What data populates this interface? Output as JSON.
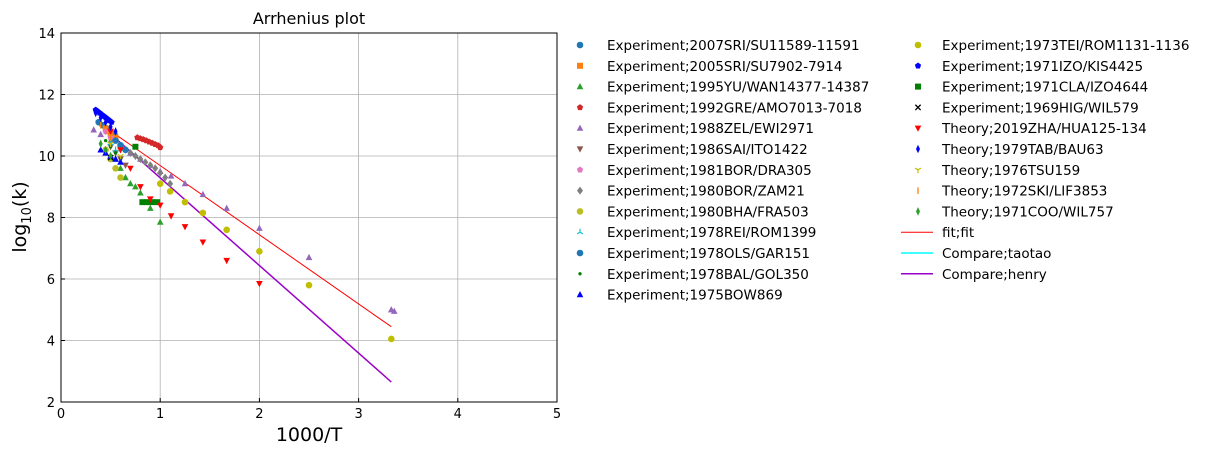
{
  "chart_data": {
    "type": "scatter",
    "title": "Arrhenius plot",
    "xlabel": "1000/T",
    "ylabel_base": "log",
    "ylabel_sub": "10",
    "ylabel_rest": "(k)",
    "xlim": [
      0,
      5
    ],
    "ylim": [
      2,
      14
    ],
    "xticks": [
      0,
      1,
      2,
      3,
      4,
      5
    ],
    "yticks": [
      2,
      4,
      6,
      8,
      10,
      12,
      14
    ],
    "grid": true,
    "legend_placement": "outside-right",
    "series": [
      {
        "name": "Experiment;2007SRI/SU11589-11591",
        "marker": "circle",
        "color": "#1f77b4",
        "x": [
          0.38,
          0.42,
          0.46,
          0.5,
          0.54
        ],
        "y": [
          11.1,
          11.0,
          10.9,
          10.8,
          10.7
        ]
      },
      {
        "name": "Experiment;2005SRI/SU7902-7914",
        "marker": "square",
        "color": "#ff7f0e",
        "x": [
          0.45,
          0.5,
          0.55
        ],
        "y": [
          10.9,
          10.75,
          10.6
        ]
      },
      {
        "name": "Experiment;1995YU/WAN14377-14387",
        "marker": "triangle-up",
        "color": "#2ca02c",
        "x": [
          0.55,
          0.6,
          0.65,
          0.7,
          0.75,
          0.8,
          0.9,
          1.0
        ],
        "y": [
          9.9,
          9.6,
          9.3,
          9.1,
          9.0,
          8.8,
          8.3,
          7.85
        ]
      },
      {
        "name": "Experiment;1992GRE/AMO7013-7018",
        "marker": "pentagon",
        "color": "#d62728",
        "x": [
          0.77,
          0.8,
          0.83,
          0.86,
          0.89,
          0.92,
          0.95,
          0.98,
          1.0
        ],
        "y": [
          10.6,
          10.57,
          10.54,
          10.5,
          10.46,
          10.42,
          10.38,
          10.34,
          10.28
        ]
      },
      {
        "name": "Experiment;1988ZEL/EWI2971",
        "marker": "triangle-up",
        "color": "#9467bd",
        "x": [
          0.33,
          0.4,
          0.5,
          0.6,
          0.7,
          0.8,
          0.9,
          1.0,
          1.11,
          1.25,
          1.43,
          1.67,
          2.0,
          2.5,
          3.33,
          3.36
        ],
        "y": [
          10.85,
          10.7,
          10.5,
          10.3,
          10.1,
          9.9,
          9.7,
          9.5,
          9.35,
          9.1,
          8.75,
          8.3,
          7.65,
          6.7,
          5.0,
          4.95
        ]
      },
      {
        "name": "Experiment;1986SAI/ITO1422",
        "marker": "triangle-down",
        "color": "#8c564b",
        "x": [
          0.5,
          0.55,
          0.6,
          0.65
        ],
        "y": [
          10.3,
          10.1,
          9.9,
          9.7
        ]
      },
      {
        "name": "Experiment;1981BOR/DRA305",
        "marker": "pentagon",
        "color": "#e377c2",
        "x": [
          0.45,
          0.5
        ],
        "y": [
          10.8,
          10.6
        ]
      },
      {
        "name": "Experiment;1980BOR/ZAM21",
        "marker": "diamond",
        "color": "#7f7f7f",
        "x": [
          0.6,
          0.65,
          0.7,
          0.75,
          0.8,
          0.85,
          0.9,
          0.95,
          1.0,
          1.05,
          1.1
        ],
        "y": [
          10.3,
          10.2,
          10.1,
          10.0,
          9.9,
          9.8,
          9.7,
          9.6,
          9.45,
          9.3,
          9.1
        ]
      },
      {
        "name": "Experiment;1980BHA/FRA503",
        "marker": "circle",
        "color": "#bcbd22",
        "x": [
          0.45,
          0.5,
          0.55,
          0.6
        ],
        "y": [
          10.2,
          9.9,
          9.6,
          9.3
        ]
      },
      {
        "name": "Experiment;1978REI/ROM1399",
        "marker": "tri-up",
        "color": "#17becf",
        "x": [
          0.5,
          0.55
        ],
        "y": [
          10.4,
          10.2
        ]
      },
      {
        "name": "Experiment;1978OLS/GAR151",
        "marker": "circle",
        "color": "#1f77b4",
        "x": [
          0.55,
          0.6,
          0.65
        ],
        "y": [
          10.5,
          10.35,
          10.2
        ]
      },
      {
        "name": "Experiment;1978BAL/GOL350",
        "marker": "point",
        "color": "#008000",
        "x": [
          0.45,
          0.5,
          0.55,
          0.6
        ],
        "y": [
          10.5,
          10.3,
          10.1,
          9.9
        ]
      },
      {
        "name": "Experiment;1975BOW869",
        "marker": "triangle-up",
        "color": "#0000ff",
        "x": [
          0.4,
          0.45,
          0.5,
          0.55,
          0.6
        ],
        "y": [
          10.2,
          10.1,
          10.0,
          9.9,
          9.8
        ]
      },
      {
        "name": "Experiment;1973TEI/ROM1131-1136",
        "marker": "circle",
        "color": "#bfbf00",
        "x": [
          1.0,
          1.1,
          1.25,
          1.43,
          1.67,
          2.0,
          2.5,
          3.33
        ],
        "y": [
          9.1,
          8.85,
          8.5,
          8.15,
          7.6,
          6.9,
          5.8,
          4.05
        ]
      },
      {
        "name": "Experiment;1971IZO/KIS4425",
        "marker": "pentagon",
        "color": "#0000ff",
        "x": [
          0.35,
          0.37,
          0.39,
          0.41,
          0.43,
          0.45,
          0.47,
          0.49,
          0.51
        ],
        "y": [
          11.5,
          11.45,
          11.4,
          11.35,
          11.3,
          11.25,
          11.2,
          11.15,
          11.1
        ]
      },
      {
        "name": "Experiment;1971CLA/IZO4644",
        "marker": "square",
        "color": "#008000",
        "x": [
          0.75,
          0.82,
          0.87,
          0.92,
          0.97
        ],
        "y": [
          10.3,
          8.5,
          8.5,
          8.5,
          8.5
        ]
      },
      {
        "name": "Experiment;1969HIG/WIL579",
        "marker": "x",
        "color": "#000000",
        "x": [
          0.5
        ],
        "y": [
          9.95
        ]
      },
      {
        "name": "Theory;2019ZHA/HUA125-134",
        "marker": "triangle-down",
        "color": "#ff0000",
        "x": [
          0.5,
          0.6,
          0.7,
          0.8,
          0.9,
          1.0,
          1.11,
          1.25,
          1.43,
          1.67,
          2.0
        ],
        "y": [
          10.8,
          10.2,
          9.6,
          9.0,
          8.6,
          8.4,
          8.05,
          7.7,
          7.2,
          6.6,
          5.85
        ]
      },
      {
        "name": "Theory;1979TAB/BAU63",
        "marker": "thin-diamond",
        "color": "#0000ff",
        "x": [
          0.35,
          0.4,
          0.45,
          0.5,
          0.55
        ],
        "y": [
          11.4,
          11.25,
          11.1,
          10.95,
          10.8
        ]
      },
      {
        "name": "Theory;1976TSU159",
        "marker": "tri-down",
        "color": "#bfbf00",
        "x": [
          0.5,
          0.6
        ],
        "y": [
          10.4,
          10.0
        ]
      },
      {
        "name": "Theory;1972SKI/LIF3853",
        "marker": "vline",
        "color": "#ff7f0e",
        "x": [
          0.4,
          0.45,
          0.5
        ],
        "y": [
          11.0,
          10.8,
          10.6
        ]
      },
      {
        "name": "Theory;1971COO/WIL757",
        "marker": "thin-diamond",
        "color": "#2ca02c",
        "x": [
          0.4,
          0.45,
          0.5
        ],
        "y": [
          10.4,
          10.2,
          10.0
        ]
      }
    ],
    "lines": [
      {
        "name": "fit;fit",
        "color": "#ff0000",
        "width": 1,
        "x": [
          0.35,
          3.33
        ],
        "y": [
          11.15,
          4.45
        ]
      },
      {
        "name": "Compare;taotao",
        "color": "#00ffff",
        "width": 1.5,
        "x": [],
        "y": []
      },
      {
        "name": "Compare;henry",
        "color": "#9a00c8",
        "width": 1.5,
        "x": [
          0.4,
          3.33
        ],
        "y": [
          11.0,
          2.65
        ]
      }
    ]
  }
}
